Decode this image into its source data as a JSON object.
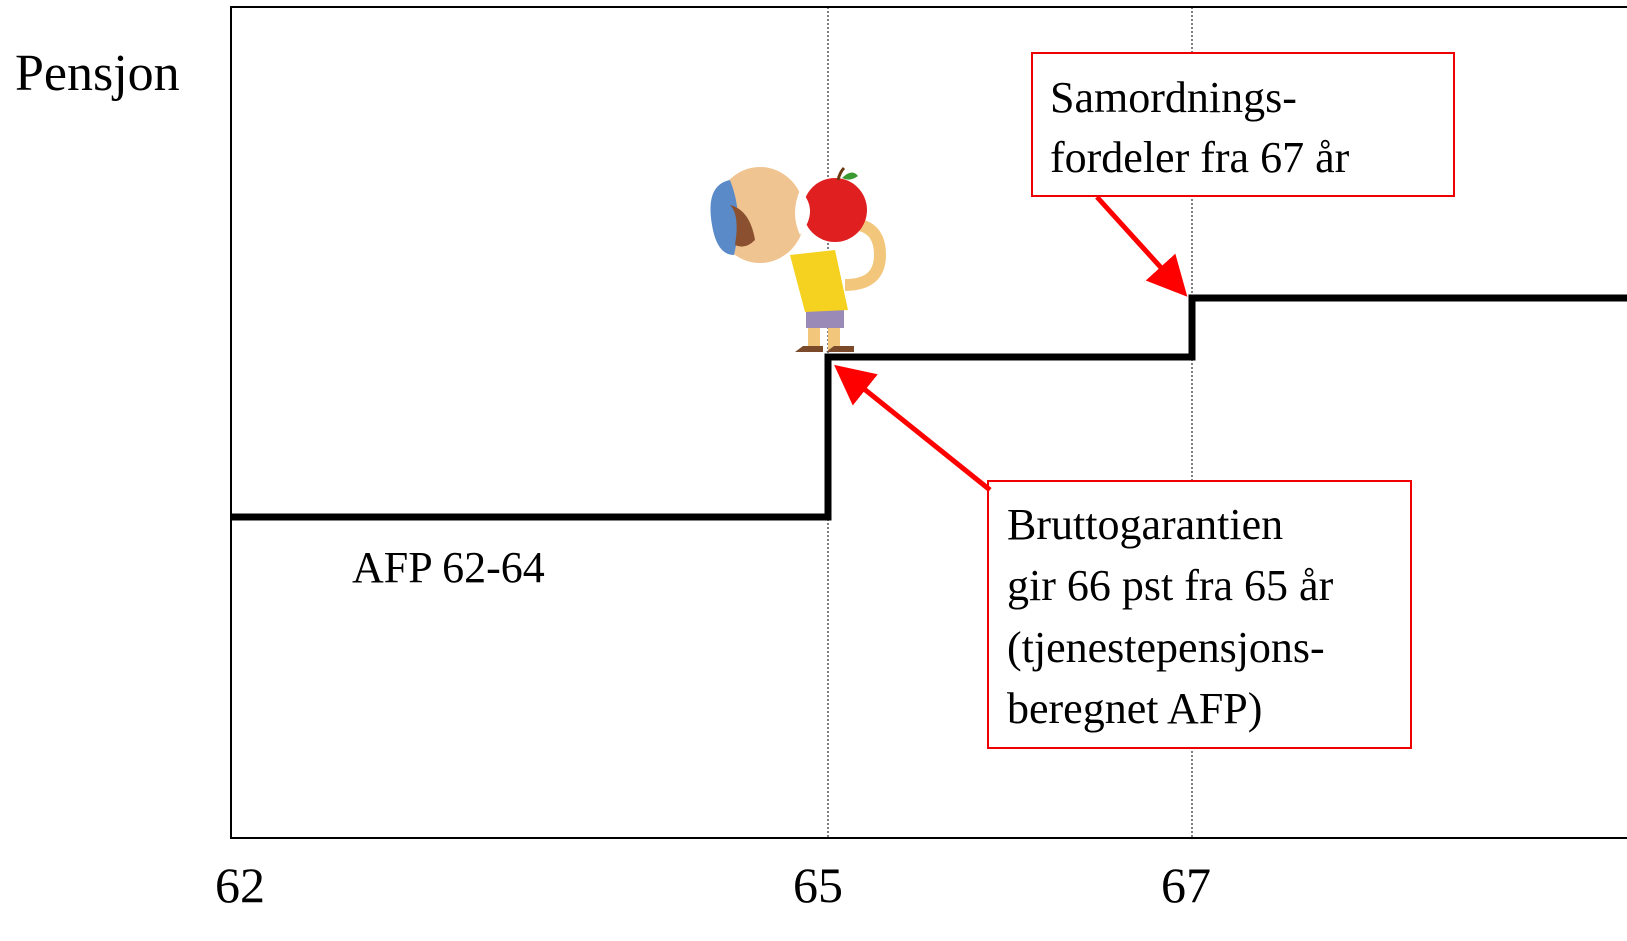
{
  "y_label": "Pensjon",
  "x_ticks": [
    62,
    65,
    67
  ],
  "step_label": "AFP 62-64",
  "callouts": [
    {
      "lines": [
        "Samordnings-",
        "fordeler fra 67 år"
      ]
    },
    {
      "lines": [
        "Bruttogarantien",
        "gir 66 pst fra 65 år",
        "(tjenestepensjons-",
        "beregnet AFP)"
      ]
    }
  ]
}
